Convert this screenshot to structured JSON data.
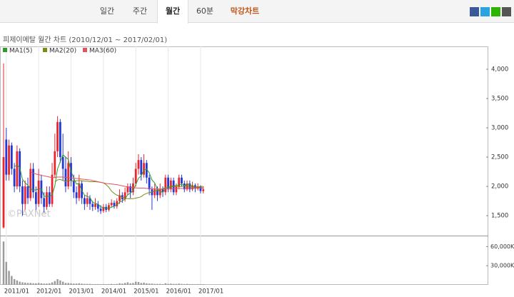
{
  "tabs": [
    "일간",
    "주간",
    "월간",
    "60분",
    "막강차트"
  ],
  "watermark": "©PAXNet",
  "chart_data": {
    "type": "candlestick",
    "title": "피제이메탈 월간 차트 (2010/12/01 ~ 2017/02/01)",
    "up_color": "#e8262d",
    "down_color": "#2338d6",
    "categories": [
      null,
      "2011/01",
      null,
      null,
      null,
      null,
      null,
      null,
      null,
      null,
      null,
      null,
      null,
      "2012/01",
      null,
      null,
      null,
      null,
      null,
      null,
      null,
      null,
      null,
      null,
      null,
      "2013/01",
      null,
      null,
      null,
      null,
      null,
      null,
      null,
      null,
      null,
      null,
      null,
      "2014/01",
      null,
      null,
      null,
      null,
      null,
      null,
      null,
      null,
      null,
      null,
      null,
      "2015/01",
      null,
      null,
      null,
      null,
      null,
      null,
      null,
      null,
      null,
      null,
      null,
      "2016/01",
      null,
      null,
      null,
      null,
      null,
      null,
      null,
      null,
      null,
      null,
      null,
      "2017/01",
      null
    ],
    "open": [
      1300,
      2800,
      2200,
      2700,
      2300,
      2000,
      2600,
      2000,
      1700,
      2000,
      1800,
      2300,
      1900,
      1700,
      2100,
      1800,
      1650,
      1900,
      1700,
      2200,
      2600,
      3100,
      2500,
      2300,
      2000,
      2400,
      2100,
      1900,
      1800,
      2050,
      1800,
      1700,
      1800,
      1700,
      1650,
      1700,
      1620,
      1580,
      1650,
      1600,
      1680,
      1720,
      1660,
      1750,
      1850,
      1780,
      1900,
      2000,
      1900,
      2050,
      2300,
      2450,
      2200,
      2400,
      2150,
      1950,
      1850,
      1950,
      1850,
      1950,
      1900,
      2150,
      1950,
      2100,
      1900,
      2000,
      2150,
      2050,
      1950,
      2050,
      1950,
      2020,
      1960,
      2000,
      1920
    ],
    "high": [
      4100,
      3000,
      2800,
      2750,
      2400,
      2700,
      2650,
      2100,
      2100,
      2150,
      2400,
      2400,
      2000,
      2300,
      2200,
      1900,
      2000,
      2000,
      2400,
      2900,
      3200,
      3150,
      2900,
      2500,
      2600,
      2500,
      2200,
      2000,
      2200,
      2100,
      1850,
      1900,
      1850,
      1750,
      1800,
      1750,
      1680,
      1700,
      1700,
      1720,
      1780,
      1760,
      1800,
      1950,
      1900,
      1980,
      2050,
      2050,
      2150,
      2400,
      2550,
      2500,
      2550,
      2450,
      2200,
      2000,
      2050,
      2000,
      2050,
      2000,
      2200,
      2200,
      2150,
      2150,
      2050,
      2200,
      2200,
      2100,
      2100,
      2100,
      2080,
      2050,
      2050,
      2020,
      2000
    ],
    "low": [
      1280,
      2100,
      2100,
      2200,
      1900,
      1950,
      1900,
      1500,
      1600,
      1700,
      1750,
      1800,
      1600,
      1650,
      1700,
      1550,
      1600,
      1650,
      1650,
      2150,
      2500,
      2400,
      2100,
      1900,
      1950,
      2000,
      1800,
      1700,
      1750,
      1700,
      1600,
      1650,
      1600,
      1580,
      1600,
      1560,
      1530,
      1550,
      1560,
      1570,
      1640,
      1620,
      1620,
      1700,
      1720,
      1740,
      1850,
      1800,
      1850,
      2000,
      2200,
      2100,
      2150,
      2050,
      1850,
      1600,
      1800,
      1750,
      1800,
      1820,
      1850,
      1900,
      1900,
      1850,
      1850,
      1950,
      2000,
      1900,
      1920,
      1900,
      1920,
      1900,
      1930,
      1880,
      1880
    ],
    "close": [
      2500,
      2200,
      2700,
      2300,
      2000,
      2600,
      2000,
      1700,
      2000,
      1800,
      2300,
      1900,
      1700,
      2100,
      1800,
      1650,
      1900,
      1700,
      2200,
      2600,
      3100,
      2500,
      2300,
      2000,
      2400,
      2100,
      1900,
      1800,
      2050,
      1800,
      1700,
      1800,
      1700,
      1650,
      1700,
      1620,
      1580,
      1650,
      1600,
      1680,
      1720,
      1660,
      1750,
      1850,
      1780,
      1900,
      2000,
      1900,
      2050,
      2300,
      2450,
      2200,
      2400,
      2150,
      1950,
      1850,
      1950,
      1850,
      1950,
      1900,
      2150,
      1950,
      2100,
      1900,
      2000,
      2150,
      2050,
      1950,
      2050,
      1950,
      2020,
      1960,
      2000,
      1920,
      1950
    ],
    "series": [
      {
        "name": "MA1(5)",
        "color": "#2e9a2e",
        "values": [
          null,
          null,
          null,
          null,
          2340,
          2360,
          2320,
          2120,
          2060,
          2020,
          1960,
          1940,
          1940,
          1960,
          1960,
          1830,
          1830,
          1830,
          1850,
          2010,
          2300,
          2420,
          2540,
          2500,
          2460,
          2260,
          2140,
          2040,
          2050,
          1930,
          1850,
          1830,
          1810,
          1730,
          1710,
          1694,
          1650,
          1640,
          1630,
          1626,
          1646,
          1662,
          1682,
          1732,
          1752,
          1788,
          1856,
          1886,
          1926,
          2030,
          2140,
          2180,
          2280,
          2300,
          2230,
          2110,
          2060,
          1950,
          1910,
          1900,
          1960,
          1960,
          2010,
          2000,
          2020,
          2020,
          2040,
          2010,
          2040,
          2030,
          2004,
          1986,
          1996,
          1970,
          1970
        ]
      },
      {
        "name": "MA2(20)",
        "color": "#7d8b12",
        "values": [
          null,
          null,
          null,
          null,
          null,
          null,
          null,
          null,
          null,
          null,
          null,
          null,
          null,
          null,
          null,
          null,
          null,
          null,
          null,
          2080,
          2110,
          2120,
          2100,
          2085,
          2105,
          2095,
          2090,
          2095,
          2100,
          2095,
          2090,
          2090,
          2080,
          2080,
          2080,
          2075,
          2070,
          2060,
          2030,
          1985,
          1920,
          1880,
          1850,
          1840,
          1810,
          1800,
          1790,
          1790,
          1790,
          1800,
          1810,
          1825,
          1860,
          1880,
          1895,
          1905,
          1920,
          1930,
          1945,
          1960,
          1980,
          1990,
          1995,
          2000,
          2000,
          1995,
          2000,
          2005,
          2010,
          2000,
          1985,
          1990,
          1990,
          2000,
          2000
        ]
      },
      {
        "name": "MA3(60)",
        "color": "#e2535f",
        "values": [
          null,
          null,
          null,
          null,
          null,
          null,
          null,
          null,
          null,
          null,
          2250,
          2230,
          2210,
          2200,
          2190,
          2180,
          2170,
          2160,
          2150,
          2150,
          2160,
          2160,
          2160,
          2155,
          2150,
          2145,
          2140,
          2135,
          2130,
          2125,
          2120,
          2115,
          2110,
          2100,
          2090,
          2080,
          2070,
          2060,
          2050,
          2045,
          2040,
          2035,
          2030,
          2020,
          2010,
          2000,
          1990,
          1985,
          1980,
          1975,
          1970,
          1970,
          1970,
          1965,
          1965,
          1960,
          1960,
          1960,
          1955,
          1955,
          1960,
          1960,
          1960,
          1960,
          1965,
          1965,
          1965,
          1965,
          1970,
          1970,
          1970,
          1970,
          1975,
          1975,
          1975
        ]
      }
    ],
    "ylim": [
      1160,
      4390
    ],
    "yticks": [
      {
        "value": 1500,
        "label": "1,500"
      },
      {
        "value": 2000,
        "label": "2,000"
      },
      {
        "value": 2500,
        "label": "2,500"
      },
      {
        "value": 3000,
        "label": "3,000"
      },
      {
        "value": 3500,
        "label": "3,500"
      },
      {
        "value": 4000,
        "label": "4,000"
      }
    ],
    "volume": {
      "color": "#9a9a9a",
      "values": [
        68000,
        36000,
        22000,
        14000,
        9000,
        7000,
        5000,
        4000,
        3500,
        3000,
        3000,
        2500,
        2500,
        3000,
        2500,
        2000,
        2000,
        2500,
        4000,
        6000,
        9000,
        7000,
        5000,
        3000,
        3000,
        2500,
        2000,
        2000,
        2500,
        2000,
        1500,
        1500,
        1500,
        1200,
        1200,
        1200,
        1000,
        1200,
        1000,
        1200,
        1500,
        1200,
        1500,
        2500,
        2000,
        3000,
        4000,
        2500,
        3000,
        5000,
        4500,
        3000,
        3500,
        2500,
        2000,
        2000,
        1500,
        1500,
        1500,
        1200,
        2500,
        1500,
        2000,
        1500,
        1500,
        2000,
        1500,
        1200,
        1500,
        1200,
        1200,
        1000,
        1200,
        1000,
        1000
      ],
      "ylim": [
        0,
        75000
      ],
      "yticks": [
        {
          "value": 30000,
          "label": "30,000K"
        },
        {
          "value": 60000,
          "label": "60,000K"
        }
      ]
    }
  }
}
